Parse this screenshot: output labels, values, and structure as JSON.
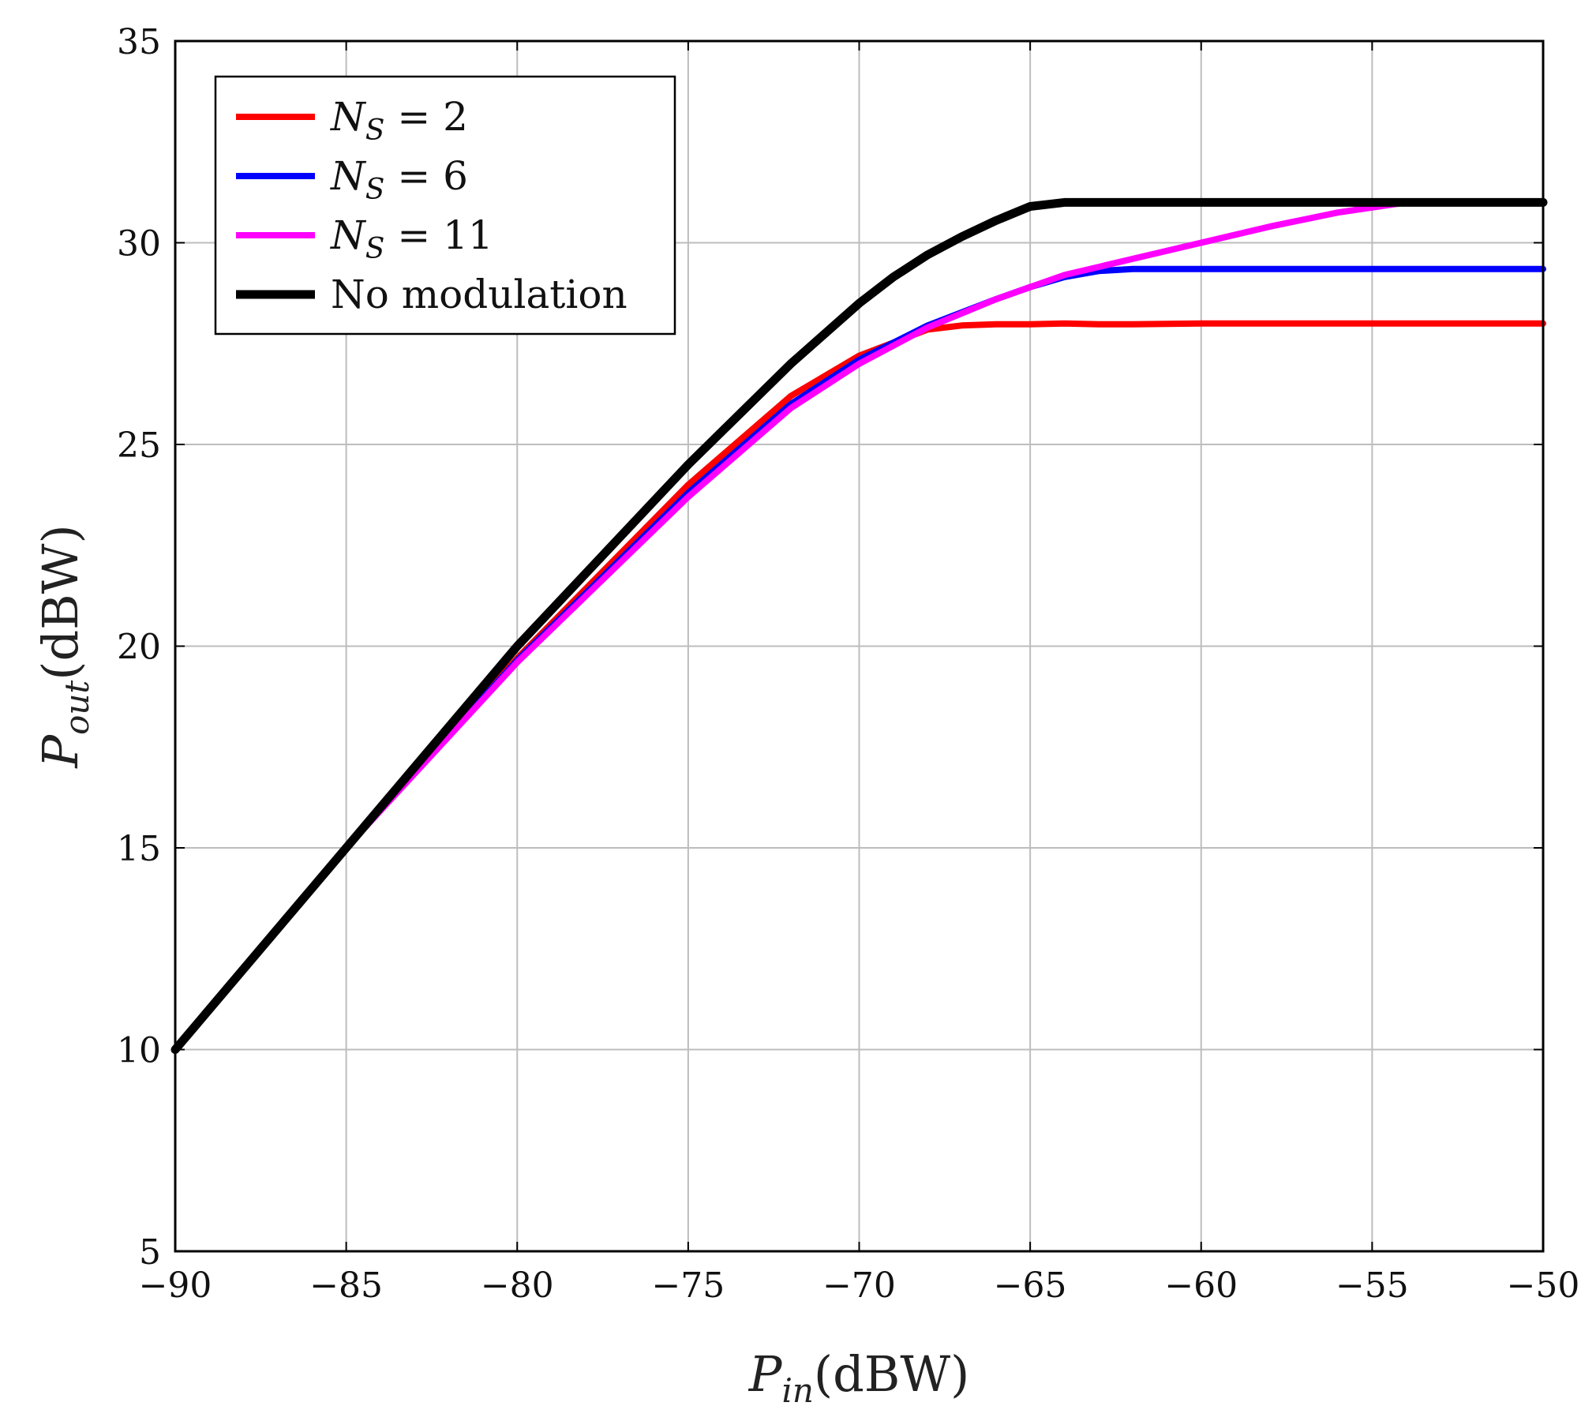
{
  "chart_data": {
    "type": "line",
    "xlabel": {
      "symbol": "P",
      "subscript": "in",
      "unit": "(dBW)"
    },
    "ylabel": {
      "symbol": "P",
      "subscript": "out",
      "unit": "(dBW)"
    },
    "xlim": [
      -90,
      -50
    ],
    "ylim": [
      5,
      35
    ],
    "xticks": [
      -90,
      -85,
      -80,
      -75,
      -70,
      -65,
      -60,
      -55,
      -50
    ],
    "xtick_labels": [
      "−90",
      "−85",
      "−80",
      "−75",
      "−70",
      "−65",
      "−60",
      "−55",
      "−50"
    ],
    "yticks": [
      5,
      10,
      15,
      20,
      25,
      30,
      35
    ],
    "ytick_labels": [
      "5",
      "10",
      "15",
      "20",
      "25",
      "30",
      "35"
    ],
    "grid": true,
    "legend_position": "top-left",
    "series": [
      {
        "name": "N_S = 2",
        "legend": {
          "symbol": "N",
          "subscript": "S",
          "rest": " = 2"
        },
        "color": "#ff0000",
        "x": [
          -90,
          -85,
          -80,
          -75,
          -72,
          -70,
          -68,
          -67,
          -66,
          -65,
          -64,
          -63,
          -62,
          -60,
          -55,
          -50
        ],
        "y": [
          10,
          15,
          19.7,
          24.0,
          26.2,
          27.2,
          27.85,
          27.95,
          27.98,
          27.98,
          28.0,
          27.98,
          27.98,
          28.0,
          28.0,
          28.0
        ]
      },
      {
        "name": "N_S = 6",
        "legend": {
          "symbol": "N",
          "subscript": "S",
          "rest": " = 6"
        },
        "color": "#0000ff",
        "x": [
          -90,
          -85,
          -80,
          -75,
          -72,
          -70,
          -68,
          -66,
          -65,
          -64,
          -63,
          -62,
          -60,
          -55,
          -50
        ],
        "y": [
          10,
          15,
          19.65,
          23.8,
          26.0,
          27.1,
          27.95,
          28.6,
          28.9,
          29.15,
          29.3,
          29.35,
          29.35,
          29.35,
          29.35
        ]
      },
      {
        "name": "N_S = 11",
        "legend": {
          "symbol": "N",
          "subscript": "S",
          "rest": " = 11"
        },
        "color": "#ff00ff",
        "x": [
          -90,
          -85,
          -80,
          -75,
          -72,
          -70,
          -68,
          -66,
          -65,
          -64,
          -62,
          -60,
          -58,
          -56,
          -54,
          -52,
          -50
        ],
        "y": [
          10,
          15,
          19.6,
          23.7,
          25.9,
          27.0,
          27.9,
          28.6,
          28.9,
          29.2,
          29.6,
          30.0,
          30.4,
          30.75,
          31.0,
          31.0,
          31.0
        ]
      },
      {
        "name": "No modulation",
        "legend": {
          "symbol": "",
          "subscript": "",
          "rest": "No modulation"
        },
        "color": "#000000",
        "x": [
          -90,
          -85,
          -80,
          -75,
          -72,
          -70,
          -69,
          -68,
          -67,
          -66,
          -65,
          -64,
          -62,
          -60,
          -55,
          -50
        ],
        "y": [
          10,
          15,
          20.0,
          24.5,
          27.0,
          28.5,
          29.15,
          29.7,
          30.15,
          30.55,
          30.9,
          31.0,
          31.0,
          31.0,
          31.0,
          31.0
        ]
      }
    ]
  }
}
